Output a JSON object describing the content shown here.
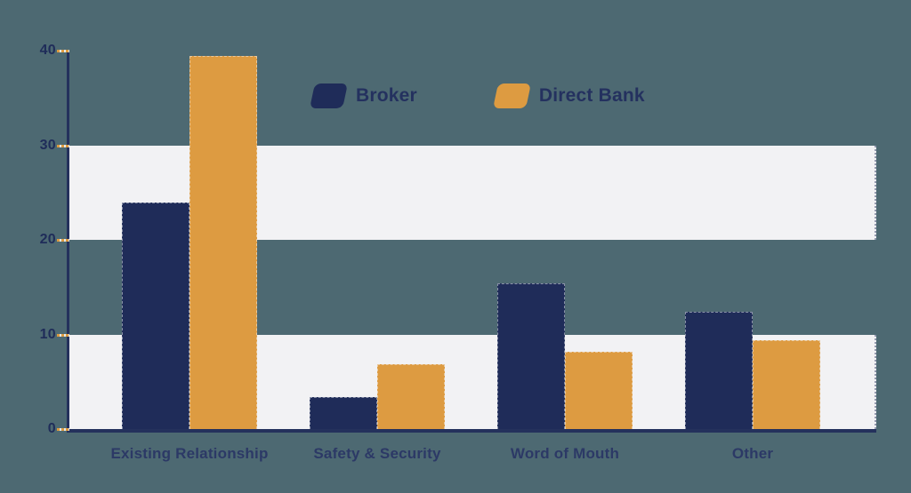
{
  "background_color": "#4d6972",
  "chart_data": {
    "type": "bar",
    "title": "",
    "xlabel": "",
    "ylabel": "",
    "categories": [
      "Existing Relationship",
      "Safety & Security",
      "Word of Mouth",
      "Other"
    ],
    "series": [
      {
        "name": "Broker",
        "color": "#1f2c59",
        "values": [
          23.9,
          3.4,
          15.4,
          12.4
        ]
      },
      {
        "name": "Direct Bank",
        "color": "#dd9b41",
        "values": [
          39.4,
          6.9,
          8.2,
          9.4
        ]
      }
    ],
    "ylim": [
      0,
      40
    ],
    "yticks": [
      0,
      10,
      20,
      30,
      40
    ],
    "grid": "alternating horizontal bands",
    "band_ranges": [
      [
        0,
        10
      ],
      [
        20,
        30
      ]
    ],
    "band_color": "#f2f2f4",
    "axis_color": "#24315c",
    "tick_color": "#dd9b41",
    "label_color": "#2c3966",
    "legend_position": "top-center"
  }
}
